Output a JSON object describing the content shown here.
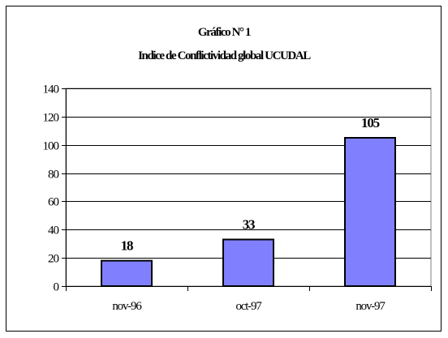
{
  "chart_data": {
    "type": "bar",
    "title": "Gráfico N° 1",
    "subtitle": "Indice de Conflictividad global UCUDAL",
    "xlabel": "",
    "ylabel": "",
    "categories": [
      "nov-96",
      "oct-97",
      "nov-97"
    ],
    "values": [
      18,
      33,
      105
    ],
    "data_labels": [
      "18",
      "33",
      "105"
    ],
    "ylim": [
      0,
      140
    ],
    "yticks": [
      "0",
      "20",
      "40",
      "60",
      "80",
      "100",
      "120",
      "140"
    ],
    "grid": true,
    "legend": "none",
    "bar_color": "#8080ff",
    "bar_edge_color": "#000000"
  }
}
